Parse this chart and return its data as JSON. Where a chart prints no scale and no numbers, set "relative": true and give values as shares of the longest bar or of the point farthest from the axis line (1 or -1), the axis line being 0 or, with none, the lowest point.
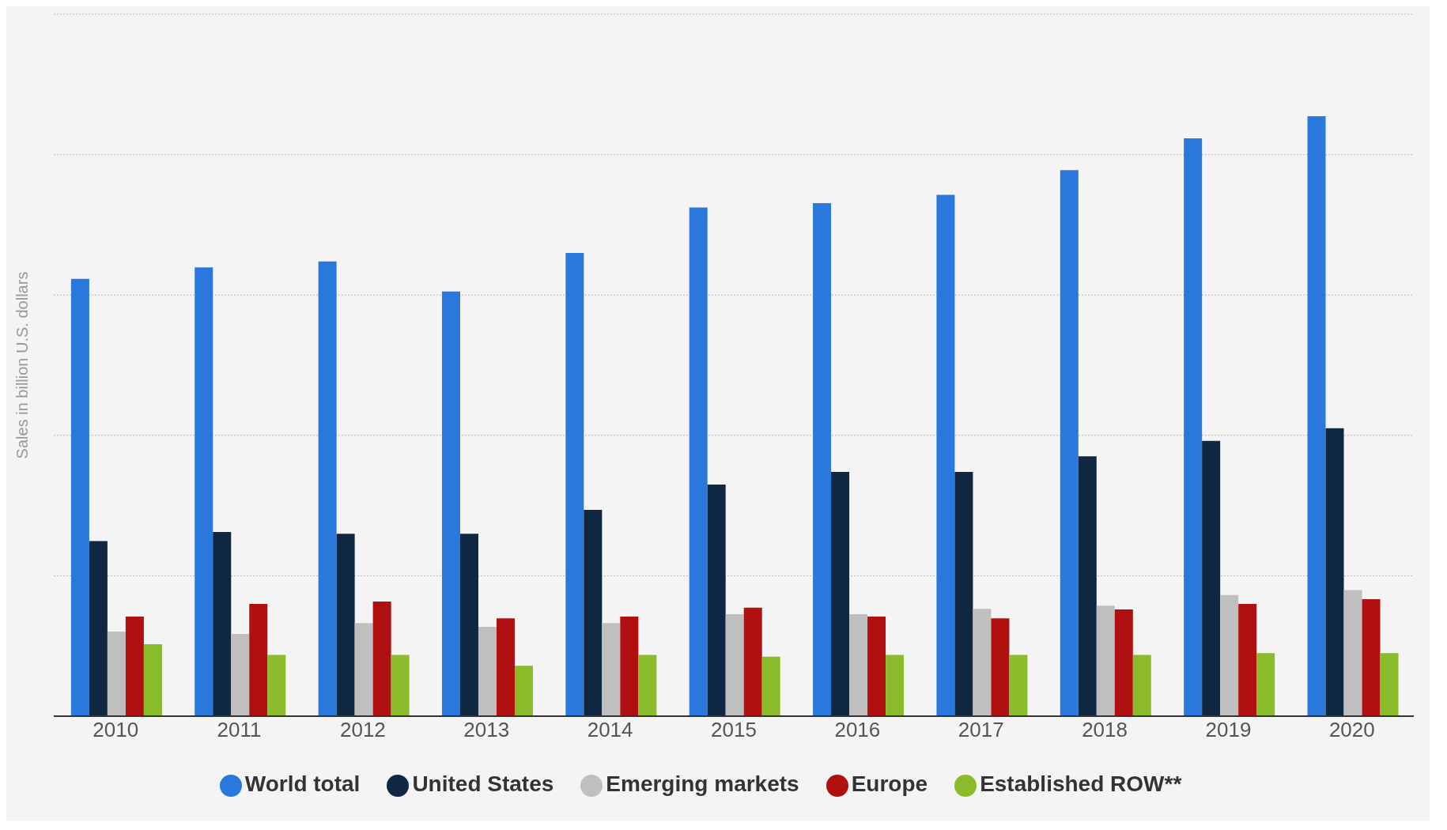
{
  "chart_data": {
    "type": "bar",
    "relative": true,
    "ylabel": "Sales in billion U.S. dollars",
    "categories": [
      "2010",
      "2011",
      "2012",
      "2013",
      "2014",
      "2015",
      "2016",
      "2017",
      "2018",
      "2019",
      "2020"
    ],
    "series": [
      {
        "name": "World total",
        "color": "#2a78dc",
        "values": [
          0.729,
          0.748,
          0.758,
          0.708,
          0.772,
          0.848,
          0.855,
          0.869,
          0.91,
          0.963,
          1
        ]
      },
      {
        "name": "United States",
        "color": "#0f2740",
        "values": [
          0.292,
          0.307,
          0.304,
          0.304,
          0.344,
          0.386,
          0.407,
          0.407,
          0.433,
          0.459,
          0.48
        ]
      },
      {
        "name": "Emerging markets",
        "color": "#bfbfbf",
        "values": [
          0.141,
          0.137,
          0.155,
          0.149,
          0.155,
          0.17,
          0.17,
          0.179,
          0.184,
          0.202,
          0.21
        ]
      },
      {
        "name": "Europe",
        "color": "#b01010",
        "values": [
          0.166,
          0.187,
          0.191,
          0.163,
          0.166,
          0.181,
          0.166,
          0.163,
          0.178,
          0.187,
          0.195
        ]
      },
      {
        "name": "Established ROW**",
        "color": "#8abb2a",
        "values": [
          0.12,
          0.102,
          0.102,
          0.084,
          0.102,
          0.099,
          0.102,
          0.102,
          0.102,
          0.105,
          0.105
        ]
      }
    ],
    "grid": "y",
    "legend": "bottom"
  }
}
